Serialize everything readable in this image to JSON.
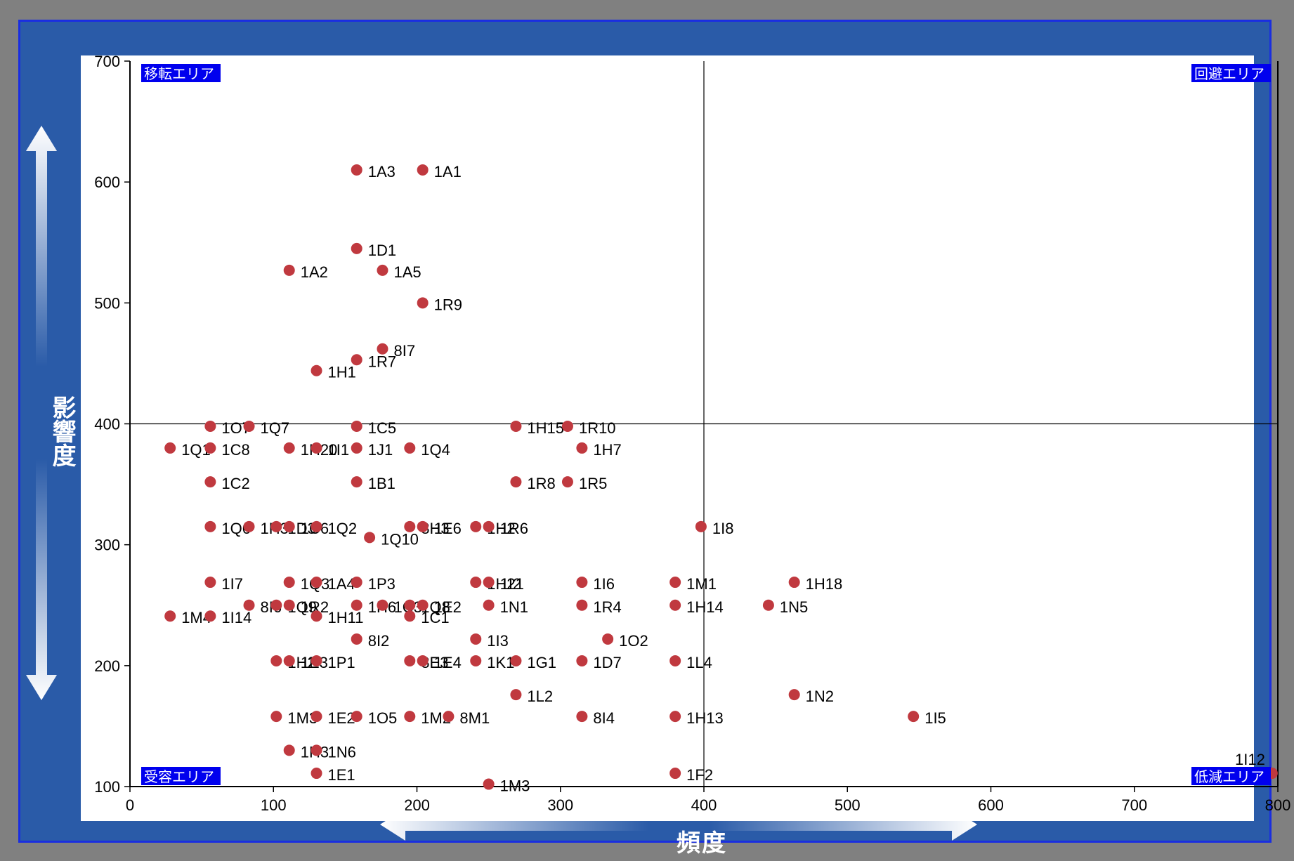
{
  "chart_data": {
    "type": "scatter",
    "xlabel": "頻度",
    "ylabel": "影響度",
    "xlim": [
      0,
      800
    ],
    "ylim": [
      100,
      700
    ],
    "xticks": [
      0,
      100,
      200,
      300,
      400,
      500,
      600,
      700,
      800
    ],
    "yticks": [
      100,
      200,
      300,
      400,
      500,
      600,
      700
    ],
    "grid": false,
    "divider": {
      "x": 400,
      "y": 400
    },
    "quadrants": {
      "top_left": "移転エリア",
      "top_right": "回避エリア",
      "bottom_left": "受容エリア",
      "bottom_right": "低減エリア"
    },
    "colors": {
      "point": "#c0393f",
      "quadrant_bg": "#0000ee",
      "frame": "#2a5ba8",
      "axis": "#000000"
    },
    "points": [
      {
        "label": "1A3",
        "x": 158,
        "y": 610
      },
      {
        "label": "1A1",
        "x": 204,
        "y": 610
      },
      {
        "label": "1D1",
        "x": 158,
        "y": 545
      },
      {
        "label": "1A2",
        "x": 111,
        "y": 527
      },
      {
        "label": "1A5",
        "x": 176,
        "y": 527
      },
      {
        "label": "1R9",
        "x": 204,
        "y": 500
      },
      {
        "label": "8I7",
        "x": 176,
        "y": 462
      },
      {
        "label": "1R7",
        "x": 158,
        "y": 453
      },
      {
        "label": "1H1",
        "x": 130,
        "y": 444
      },
      {
        "label": "1O7",
        "x": 56,
        "y": 398
      },
      {
        "label": "1Q7",
        "x": 83,
        "y": 398
      },
      {
        "label": "1C5",
        "x": 158,
        "y": 398
      },
      {
        "label": "1H15",
        "x": 269,
        "y": 398
      },
      {
        "label": "1R10",
        "x": 305,
        "y": 398
      },
      {
        "label": "1Q1",
        "x": 28,
        "y": 380
      },
      {
        "label": "1C8",
        "x": 56,
        "y": 380
      },
      {
        "label": "1H20",
        "x": 111,
        "y": 380
      },
      {
        "label": "1I1",
        "x": 130,
        "y": 380
      },
      {
        "label": "1J1",
        "x": 158,
        "y": 380
      },
      {
        "label": "1Q4",
        "x": 195,
        "y": 380
      },
      {
        "label": "1H7",
        "x": 315,
        "y": 380
      },
      {
        "label": "1C2",
        "x": 56,
        "y": 352
      },
      {
        "label": "1B1",
        "x": 158,
        "y": 352
      },
      {
        "label": "1R8",
        "x": 269,
        "y": 352
      },
      {
        "label": "1R5",
        "x": 305,
        "y": 352
      },
      {
        "label": "1Q6",
        "x": 56,
        "y": 315
      },
      {
        "label": "1H3",
        "x": 83,
        "y": 315
      },
      {
        "label": "1D3",
        "x": 102,
        "y": 315
      },
      {
        "label": "1C6",
        "x": 111,
        "y": 315
      },
      {
        "label": "1Q2",
        "x": 130,
        "y": 315
      },
      {
        "label": "8H3",
        "x": 195,
        "y": 315
      },
      {
        "label": "1E6",
        "x": 204,
        "y": 315
      },
      {
        "label": "1H2",
        "x": 241,
        "y": 315
      },
      {
        "label": "1R6",
        "x": 250,
        "y": 315
      },
      {
        "label": "1I8",
        "x": 398,
        "y": 315
      },
      {
        "label": "1Q10",
        "x": 167,
        "y": 306
      },
      {
        "label": "1I7",
        "x": 56,
        "y": 269
      },
      {
        "label": "1Q3",
        "x": 111,
        "y": 269
      },
      {
        "label": "1A4",
        "x": 130,
        "y": 269
      },
      {
        "label": "1P3",
        "x": 158,
        "y": 269
      },
      {
        "label": "1H21",
        "x": 241,
        "y": 269
      },
      {
        "label": "1I2",
        "x": 250,
        "y": 269
      },
      {
        "label": "1I6",
        "x": 315,
        "y": 269
      },
      {
        "label": "1M1",
        "x": 380,
        "y": 269
      },
      {
        "label": "1H18",
        "x": 463,
        "y": 269
      },
      {
        "label": "8I6",
        "x": 83,
        "y": 250
      },
      {
        "label": "1Q9",
        "x": 102,
        "y": 250
      },
      {
        "label": "1R2",
        "x": 111,
        "y": 250
      },
      {
        "label": "1H6",
        "x": 158,
        "y": 250
      },
      {
        "label": "1C3",
        "x": 176,
        "y": 250
      },
      {
        "label": "1Q8",
        "x": 195,
        "y": 250
      },
      {
        "label": "1E2",
        "x": 204,
        "y": 250
      },
      {
        "label": "1N1",
        "x": 250,
        "y": 250
      },
      {
        "label": "1R4",
        "x": 315,
        "y": 250
      },
      {
        "label": "1H14",
        "x": 380,
        "y": 250
      },
      {
        "label": "1N5",
        "x": 445,
        "y": 250
      },
      {
        "label": "1M4",
        "x": 28,
        "y": 241
      },
      {
        "label": "1I14",
        "x": 56,
        "y": 241
      },
      {
        "label": "1H11",
        "x": 130,
        "y": 241
      },
      {
        "label": "1C1",
        "x": 195,
        "y": 241
      },
      {
        "label": "8I2",
        "x": 158,
        "y": 222
      },
      {
        "label": "1I3",
        "x": 241,
        "y": 222
      },
      {
        "label": "1O2",
        "x": 333,
        "y": 222
      },
      {
        "label": "1H2",
        "x": 102,
        "y": 204
      },
      {
        "label": "1E3",
        "x": 111,
        "y": 204
      },
      {
        "label": "1P1",
        "x": 130,
        "y": 204
      },
      {
        "label": "8E3",
        "x": 195,
        "y": 204
      },
      {
        "label": "1E4",
        "x": 204,
        "y": 204
      },
      {
        "label": "1K1",
        "x": 241,
        "y": 204
      },
      {
        "label": "1G1",
        "x": 269,
        "y": 204
      },
      {
        "label": "1D7",
        "x": 315,
        "y": 204
      },
      {
        "label": "1L4",
        "x": 380,
        "y": 204
      },
      {
        "label": "1L2",
        "x": 269,
        "y": 176
      },
      {
        "label": "1N2",
        "x": 463,
        "y": 176
      },
      {
        "label": "1M3",
        "x": 102,
        "y": 158
      },
      {
        "label": "1E2",
        "x": 130,
        "y": 158
      },
      {
        "label": "1O5",
        "x": 158,
        "y": 158
      },
      {
        "label": "1M2",
        "x": 195,
        "y": 158
      },
      {
        "label": "8M1",
        "x": 222,
        "y": 158
      },
      {
        "label": "8I4",
        "x": 315,
        "y": 158
      },
      {
        "label": "1H13",
        "x": 380,
        "y": 158
      },
      {
        "label": "1I5",
        "x": 546,
        "y": 158
      },
      {
        "label": "1H3",
        "x": 111,
        "y": 130
      },
      {
        "label": "1N6",
        "x": 130,
        "y": 130
      },
      {
        "label": "1E1",
        "x": 130,
        "y": 111
      },
      {
        "label": "1F2",
        "x": 380,
        "y": 111
      },
      {
        "label": "1I12",
        "x": 796,
        "y": 111
      },
      {
        "label": "1M3",
        "x": 250,
        "y": 102
      }
    ]
  }
}
